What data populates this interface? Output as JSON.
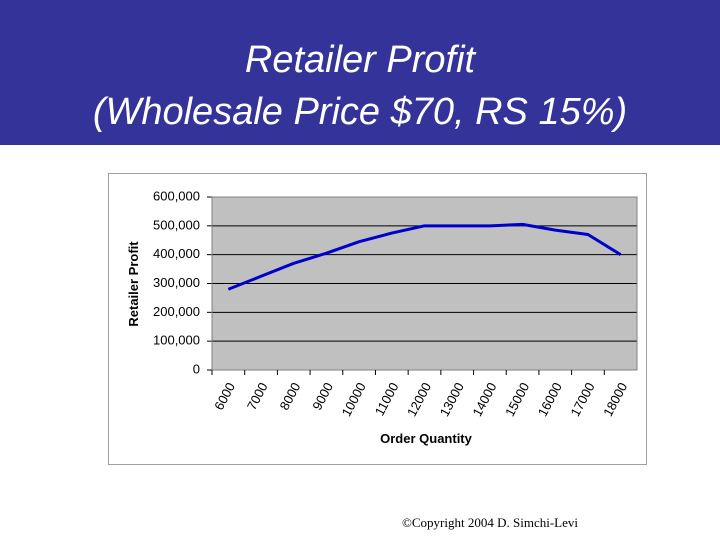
{
  "chart_data": {
    "type": "line",
    "title": [
      "Retailer Profit",
      "(Wholesale Price $70, RS 15%)"
    ],
    "x_label": "Order Quantity",
    "y_label": "Retailer Profit",
    "categories": [
      "6000",
      "7000",
      "8000",
      "9000",
      "10000",
      "11000",
      "12000",
      "13000",
      "14000",
      "15000",
      "16000",
      "17000",
      "18000"
    ],
    "series": [
      {
        "name": "Retailer Profit",
        "color": "#0000cc",
        "values": [
          280000,
          325000,
          370000,
          405000,
          445000,
          475000,
          500000,
          500000,
          500000,
          505000,
          485000,
          470000,
          400000
        ]
      }
    ],
    "ylim": [
      0,
      600000
    ],
    "yticks": [
      0,
      {
        "value": 100000,
        "label": "100,000"
      },
      {
        "value": 200000,
        "label": "200,000"
      },
      {
        "value": 300000,
        "label": "300,000"
      },
      {
        "value": 400000,
        "label": "400,000"
      },
      {
        "value": 500000,
        "label": "500,000"
      },
      {
        "value": 600000,
        "label": "600,000"
      }
    ],
    "grid": true
  },
  "footer": "©Copyright 2004 D. Simchi-Levi"
}
